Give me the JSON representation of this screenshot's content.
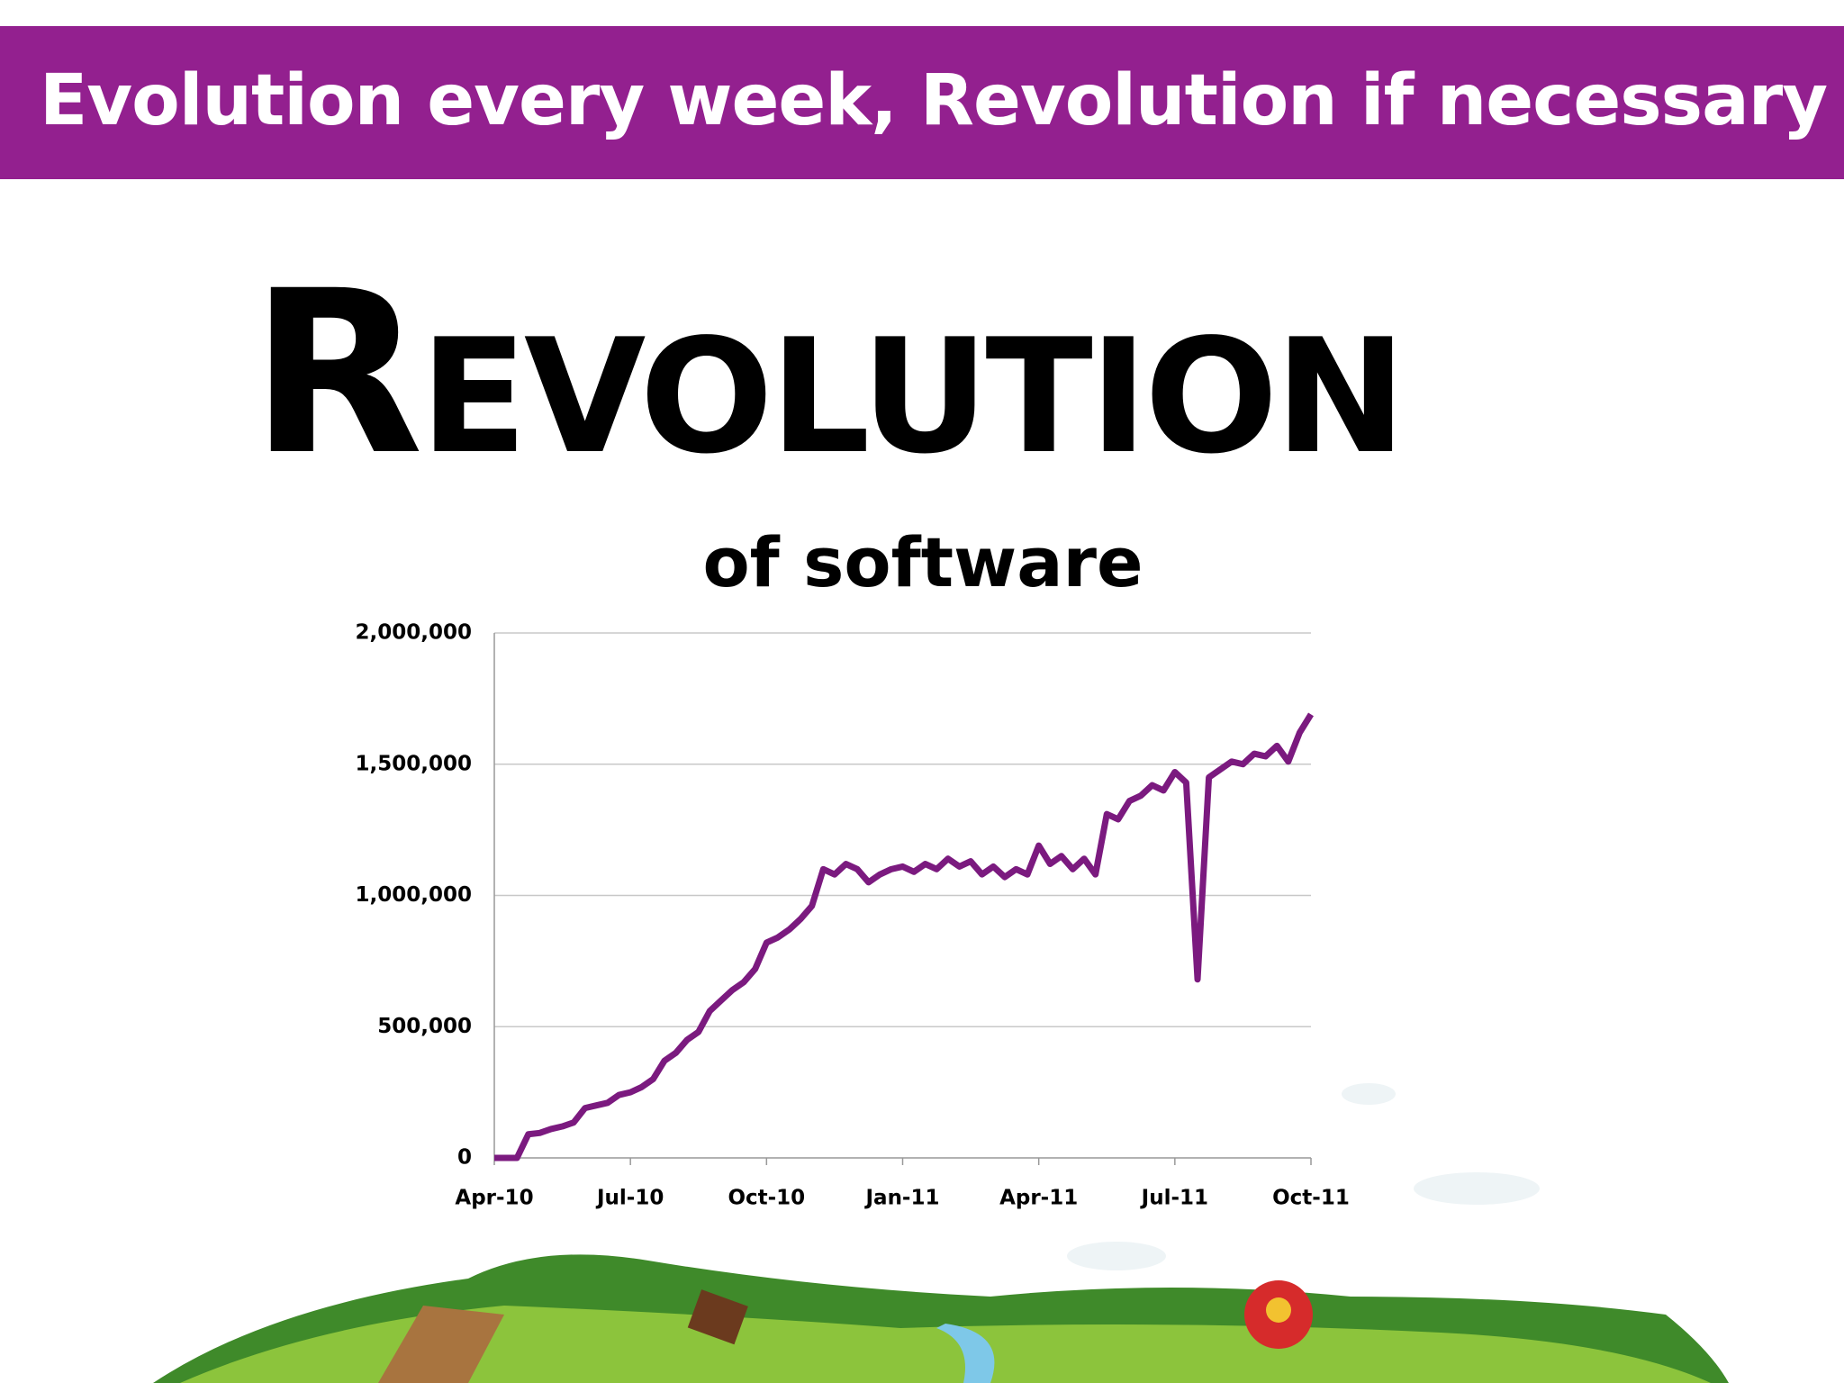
{
  "header": {
    "title": "Evolution every week, Revolution if necessary"
  },
  "headline": "Revolution",
  "subheadline": "of software",
  "chart_data": {
    "type": "line",
    "x": [
      0,
      0.25,
      0.5,
      0.75,
      1,
      1.25,
      1.5,
      1.75,
      2,
      2.25,
      2.5,
      2.75,
      3,
      3.25,
      3.5,
      3.75,
      4,
      4.25,
      4.5,
      4.75,
      5,
      5.25,
      5.5,
      5.75,
      6,
      6.25,
      6.5,
      6.75,
      7,
      7.25,
      7.5,
      7.75,
      8,
      8.25,
      8.5,
      8.75,
      9,
      9.25,
      9.5,
      9.75,
      10,
      10.25,
      10.5,
      10.75,
      11,
      11.25,
      11.5,
      11.75,
      12,
      12.25,
      12.5,
      12.75,
      13,
      13.25,
      13.5,
      13.75,
      14,
      14.25,
      14.5,
      14.75,
      15,
      15.25,
      15.5,
      15.75,
      16,
      16.25,
      16.5,
      16.75,
      17,
      17.25,
      17.5,
      17.75,
      18
    ],
    "series": [
      {
        "color": "#7b1a7f",
        "values": [
          0,
          0,
          0,
          90000,
          95000,
          110000,
          120000,
          135000,
          190000,
          200000,
          210000,
          240000,
          250000,
          270000,
          300000,
          370000,
          400000,
          450000,
          480000,
          560000,
          600000,
          640000,
          670000,
          720000,
          820000,
          840000,
          870000,
          910000,
          960000,
          1100000,
          1080000,
          1120000,
          1100000,
          1050000,
          1080000,
          1100000,
          1110000,
          1090000,
          1120000,
          1100000,
          1140000,
          1110000,
          1130000,
          1080000,
          1110000,
          1070000,
          1100000,
          1080000,
          1190000,
          1120000,
          1150000,
          1100000,
          1140000,
          1080000,
          1310000,
          1290000,
          1360000,
          1380000,
          1420000,
          1400000,
          1470000,
          1430000,
          680000,
          1450000,
          1480000,
          1510000,
          1500000,
          1540000,
          1530000,
          1570000,
          1510000,
          1620000,
          1690000
        ]
      }
    ],
    "xlim": [
      0,
      18
    ],
    "xticks": [
      {
        "value": 0,
        "label": "Apr-10"
      },
      {
        "value": 3,
        "label": "Jul-10"
      },
      {
        "value": 6,
        "label": "Oct-10"
      },
      {
        "value": 9,
        "label": "Jan-11"
      },
      {
        "value": 12,
        "label": "Apr-11"
      },
      {
        "value": 15,
        "label": "Jul-11"
      },
      {
        "value": 18,
        "label": "Oct-11"
      }
    ],
    "ylim": [
      0,
      2000000
    ],
    "yticks": [
      0,
      {
        "value": 500000,
        "label": "500,000"
      },
      {
        "value": 1000000,
        "label": "1,000,000"
      },
      {
        "value": 1500000,
        "label": "1,500,000"
      },
      {
        "value": 2000000,
        "label": "2,000,000"
      }
    ],
    "grid": true
  }
}
